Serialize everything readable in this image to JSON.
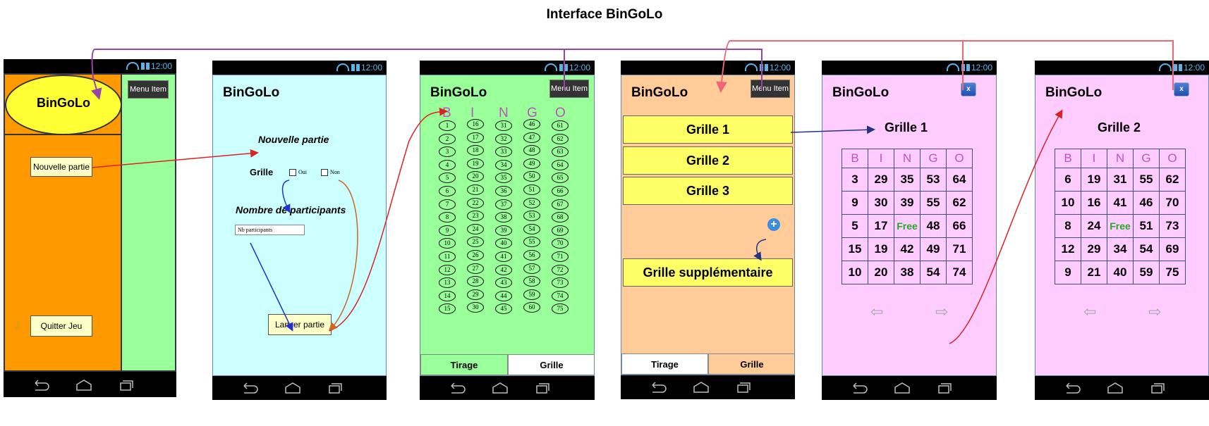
{
  "title": "Interface BinGoLo",
  "status_time": "12:00",
  "screen1": {
    "logo": "BinGoLo",
    "menu_item": "Menu Item",
    "new_game": "Nouvelle partie",
    "quit": "Quitter Jeu",
    "key_icon": "key-icon"
  },
  "screen2": {
    "app_title": "BinGoLo",
    "heading": "Nouvelle partie",
    "grille_label": "Grille",
    "oui": "Oui",
    "non": "Non",
    "participants_heading": "Nombre de participants",
    "participants_placeholder": "Nb participants",
    "launch": "Lancer partie"
  },
  "screen3": {
    "app_title": "BinGoLo",
    "menu_item": "Menu Item",
    "letters": [
      "B",
      "I",
      "N",
      "G",
      "O"
    ],
    "columns": [
      [
        "1",
        "2",
        "3",
        "4",
        "5",
        "6",
        "7",
        "8",
        "9",
        "10",
        "11",
        "12",
        "13",
        "14",
        "15"
      ],
      [
        "16",
        "17",
        "18",
        "19",
        "20",
        "21",
        "22",
        "23",
        "24",
        "25",
        "26",
        "27",
        "28",
        "29",
        "30"
      ],
      [
        "31",
        "32",
        "33",
        "34",
        "35",
        "36",
        "37",
        "38",
        "39",
        "40",
        "41",
        "42",
        "43",
        "44",
        "45"
      ],
      [
        "46",
        "47",
        "48",
        "49",
        "50",
        "51",
        "52",
        "53",
        "54",
        "55",
        "56",
        "57",
        "58",
        "59",
        "60"
      ],
      [
        "61",
        "62",
        "63",
        "64",
        "65",
        "66",
        "67",
        "68",
        "69",
        "70",
        "71",
        "72",
        "73",
        "74",
        "75"
      ]
    ],
    "tab_draw": "Tirage",
    "tab_grid": "Grille"
  },
  "screen4": {
    "app_title": "BinGoLo",
    "menu_item": "Menu Item",
    "grids": [
      "Grille 1",
      "Grille 2",
      "Grille 3"
    ],
    "add_icon": "plus-circle-icon",
    "extra": "Grille supplémentaire",
    "tab_draw": "Tirage",
    "tab_grid": "Grille"
  },
  "screen5": {
    "app_title": "BinGoLo",
    "close": "x",
    "grid_title": "Grille 1",
    "letters": [
      "B",
      "I",
      "N",
      "G",
      "O"
    ],
    "rows": [
      [
        "3",
        "29",
        "35",
        "53",
        "64"
      ],
      [
        "9",
        "30",
        "39",
        "55",
        "62"
      ],
      [
        "5",
        "17",
        "Free",
        "48",
        "66"
      ],
      [
        "15",
        "19",
        "42",
        "49",
        "71"
      ],
      [
        "10",
        "20",
        "38",
        "54",
        "74"
      ]
    ],
    "prev_icon": "arrow-left-icon",
    "next_icon": "arrow-right-icon"
  },
  "screen6": {
    "app_title": "BinGoLo",
    "close": "x",
    "grid_title": "Grille 2",
    "letters": [
      "B",
      "I",
      "N",
      "G",
      "O"
    ],
    "rows": [
      [
        "6",
        "19",
        "31",
        "55",
        "62"
      ],
      [
        "10",
        "16",
        "41",
        "46",
        "70"
      ],
      [
        "8",
        "24",
        "Free",
        "51",
        "73"
      ],
      [
        "12",
        "29",
        "34",
        "54",
        "69"
      ],
      [
        "9",
        "21",
        "40",
        "59",
        "75"
      ]
    ],
    "prev_icon": "arrow-left-icon",
    "next_icon": "arrow-right-icon"
  },
  "colors": {
    "orange": "#ff9900",
    "green": "#99ff99",
    "cyan": "#ccffff",
    "peach": "#ffcc99",
    "pink": "#ffccff",
    "yellow": "#ffff66",
    "purple_link": "#9944aa",
    "red_link": "#dd2222",
    "pink_link": "#ee6677",
    "blue_link": "#2233cc",
    "brown_link": "#cc6622",
    "navy_link": "#223388"
  }
}
